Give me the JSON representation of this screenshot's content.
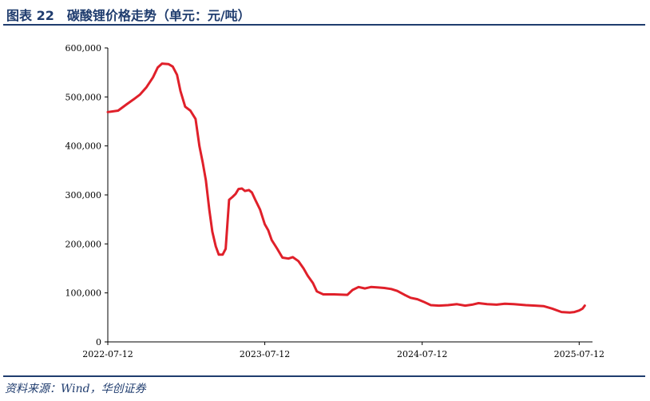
{
  "header": {
    "title": "图表 22　碳酸锂价格走势（单元：元/吨）"
  },
  "footer": {
    "source": "资料来源：Wind，华创证券"
  },
  "chart_data": {
    "type": "line",
    "title": "碳酸锂价格走势（单元：元/吨）",
    "xlabel": "",
    "ylabel": "",
    "ylim": [
      0,
      600000
    ],
    "yticks": [
      0,
      100000,
      200000,
      300000,
      400000,
      500000,
      600000
    ],
    "ytick_labels": [
      "0",
      "100,000",
      "200,000",
      "300,000",
      "400,000",
      "500,000",
      "600,000"
    ],
    "xticks": [
      "2022-07-12",
      "2023-07-12",
      "2024-07-12",
      "2025-07-12"
    ],
    "xlim": [
      "2022-07-12",
      "2025-08-12"
    ],
    "grid": false,
    "legend": "none",
    "series": [
      {
        "color": "#e0202a",
        "points": [
          [
            "2022-07-12",
            469000
          ],
          [
            "2022-08-05",
            472000
          ],
          [
            "2022-08-25",
            485000
          ],
          [
            "2022-09-10",
            495000
          ],
          [
            "2022-09-25",
            505000
          ],
          [
            "2022-10-10",
            520000
          ],
          [
            "2022-10-25",
            540000
          ],
          [
            "2022-11-05",
            560000
          ],
          [
            "2022-11-15",
            568000
          ],
          [
            "2022-11-30",
            567000
          ],
          [
            "2022-12-10",
            562000
          ],
          [
            "2022-12-20",
            545000
          ],
          [
            "2022-12-28",
            512000
          ],
          [
            "2023-01-08",
            480000
          ],
          [
            "2023-01-20",
            472000
          ],
          [
            "2023-02-01",
            455000
          ],
          [
            "2023-02-10",
            400000
          ],
          [
            "2023-02-18",
            365000
          ],
          [
            "2023-02-25",
            330000
          ],
          [
            "2023-03-05",
            270000
          ],
          [
            "2023-03-12",
            225000
          ],
          [
            "2023-03-20",
            195000
          ],
          [
            "2023-03-27",
            178000
          ],
          [
            "2023-04-05",
            178000
          ],
          [
            "2023-04-12",
            190000
          ],
          [
            "2023-04-20",
            290000
          ],
          [
            "2023-04-28",
            296000
          ],
          [
            "2023-05-05",
            302000
          ],
          [
            "2023-05-12",
            312000
          ],
          [
            "2023-05-20",
            313000
          ],
          [
            "2023-05-27",
            308000
          ],
          [
            "2023-06-05",
            310000
          ],
          [
            "2023-06-12",
            305000
          ],
          [
            "2023-06-20",
            290000
          ],
          [
            "2023-07-01",
            270000
          ],
          [
            "2023-07-12",
            240000
          ],
          [
            "2023-07-20",
            228000
          ],
          [
            "2023-07-28",
            208000
          ],
          [
            "2023-08-10",
            190000
          ],
          [
            "2023-08-22",
            172000
          ],
          [
            "2023-09-05",
            170000
          ],
          [
            "2023-09-15",
            173000
          ],
          [
            "2023-09-28",
            165000
          ],
          [
            "2023-10-10",
            150000
          ],
          [
            "2023-10-20",
            135000
          ],
          [
            "2023-11-01",
            120000
          ],
          [
            "2023-11-10",
            103000
          ],
          [
            "2023-11-25",
            97000
          ],
          [
            "2023-12-20",
            97000
          ],
          [
            "2024-01-20",
            96000
          ],
          [
            "2024-02-01",
            106000
          ],
          [
            "2024-02-15",
            112000
          ],
          [
            "2024-03-01",
            109000
          ],
          [
            "2024-03-15",
            112000
          ],
          [
            "2024-04-01",
            111000
          ],
          [
            "2024-04-15",
            110000
          ],
          [
            "2024-05-01",
            108000
          ],
          [
            "2024-05-15",
            104000
          ],
          [
            "2024-06-01",
            96000
          ],
          [
            "2024-06-15",
            90000
          ],
          [
            "2024-07-01",
            87000
          ],
          [
            "2024-07-15",
            82000
          ],
          [
            "2024-08-01",
            75000
          ],
          [
            "2024-08-20",
            74000
          ],
          [
            "2024-09-10",
            75000
          ],
          [
            "2024-10-01",
            77000
          ],
          [
            "2024-10-20",
            74000
          ],
          [
            "2024-11-05",
            76000
          ],
          [
            "2024-11-20",
            79000
          ],
          [
            "2024-12-10",
            77000
          ],
          [
            "2025-01-01",
            76000
          ],
          [
            "2025-01-20",
            78000
          ],
          [
            "2025-02-10",
            77000
          ],
          [
            "2025-03-10",
            75000
          ],
          [
            "2025-04-01",
            74000
          ],
          [
            "2025-04-20",
            73000
          ],
          [
            "2025-05-10",
            68000
          ],
          [
            "2025-06-01",
            61000
          ],
          [
            "2025-06-20",
            60000
          ],
          [
            "2025-07-01",
            61000
          ],
          [
            "2025-07-12",
            64000
          ],
          [
            "2025-07-20",
            68000
          ],
          [
            "2025-07-25",
            74000
          ]
        ]
      }
    ]
  }
}
